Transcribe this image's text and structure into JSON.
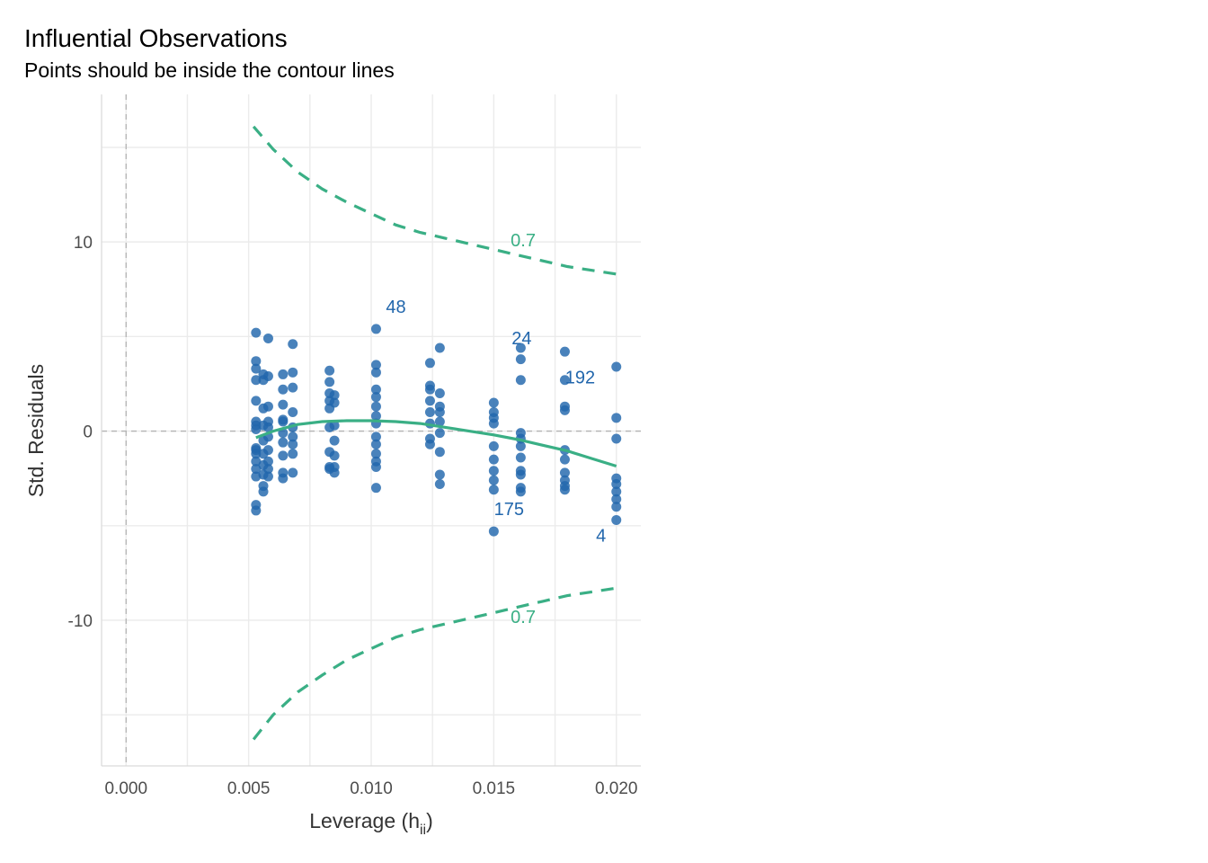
{
  "chart_data": {
    "type": "scatter",
    "title": "Influential Observations",
    "subtitle": "Points should be inside the contour lines",
    "xlabel": "Leverage (h",
    "xlabel_sub": "ii",
    "xlabel_close": ")",
    "ylabel": "Std. Residuals",
    "xlim": [
      -0.001,
      0.021
    ],
    "ylim": [
      -17.7,
      17.8
    ],
    "x_ticks": [
      0.0,
      0.005,
      0.01,
      0.015,
      0.02
    ],
    "x_tick_labels": [
      "0.000",
      "0.005",
      "0.010",
      "0.015",
      "0.020"
    ],
    "y_ticks": [
      -10,
      0,
      10
    ],
    "y_tick_labels": [
      "-10",
      "0",
      "10"
    ],
    "reference_lines": {
      "x": 0,
      "y": 0
    },
    "colors": {
      "points": "#2166ac",
      "smooth": "#3aaf85",
      "contour": "#3aaf85",
      "grid": "#ebebeb",
      "reference": "#b3b3b3"
    },
    "points": [
      {
        "x": 0.0053,
        "y": 5.2
      },
      {
        "x": 0.0053,
        "y": 3.7
      },
      {
        "x": 0.0053,
        "y": 3.3
      },
      {
        "x": 0.0053,
        "y": 2.7
      },
      {
        "x": 0.0053,
        "y": 1.6
      },
      {
        "x": 0.0053,
        "y": 0.5
      },
      {
        "x": 0.0053,
        "y": 0.3
      },
      {
        "x": 0.0053,
        "y": 0.1
      },
      {
        "x": 0.0053,
        "y": -0.9
      },
      {
        "x": 0.0053,
        "y": -1.0
      },
      {
        "x": 0.0053,
        "y": -1.2
      },
      {
        "x": 0.0053,
        "y": -1.6
      },
      {
        "x": 0.0053,
        "y": -2.0
      },
      {
        "x": 0.0053,
        "y": -2.4
      },
      {
        "x": 0.0053,
        "y": -3.9
      },
      {
        "x": 0.0053,
        "y": -4.2
      },
      {
        "x": 0.0056,
        "y": 3.0
      },
      {
        "x": 0.0056,
        "y": 2.7
      },
      {
        "x": 0.0056,
        "y": 1.2
      },
      {
        "x": 0.0056,
        "y": 0.3
      },
      {
        "x": 0.0056,
        "y": -0.5
      },
      {
        "x": 0.0056,
        "y": -1.2
      },
      {
        "x": 0.0056,
        "y": -1.8
      },
      {
        "x": 0.0056,
        "y": -2.3
      },
      {
        "x": 0.0056,
        "y": -2.9
      },
      {
        "x": 0.0056,
        "y": -3.2
      },
      {
        "x": 0.0058,
        "y": 4.9
      },
      {
        "x": 0.0058,
        "y": 2.9
      },
      {
        "x": 0.0058,
        "y": 1.3
      },
      {
        "x": 0.0058,
        "y": 0.5
      },
      {
        "x": 0.0058,
        "y": 0.2
      },
      {
        "x": 0.0058,
        "y": -0.3
      },
      {
        "x": 0.0058,
        "y": -1.0
      },
      {
        "x": 0.0058,
        "y": -1.6
      },
      {
        "x": 0.0058,
        "y": -2.0
      },
      {
        "x": 0.0058,
        "y": -2.4
      },
      {
        "x": 0.0064,
        "y": 3.0
      },
      {
        "x": 0.0064,
        "y": 2.2
      },
      {
        "x": 0.0064,
        "y": 1.4
      },
      {
        "x": 0.0064,
        "y": 0.6
      },
      {
        "x": 0.0064,
        "y": 0.5
      },
      {
        "x": 0.0064,
        "y": -0.1
      },
      {
        "x": 0.0064,
        "y": -0.6
      },
      {
        "x": 0.0064,
        "y": -1.3
      },
      {
        "x": 0.0064,
        "y": -2.2
      },
      {
        "x": 0.0064,
        "y": -2.5
      },
      {
        "x": 0.0068,
        "y": 4.6
      },
      {
        "x": 0.0068,
        "y": 3.1
      },
      {
        "x": 0.0068,
        "y": 2.3
      },
      {
        "x": 0.0068,
        "y": 1.0
      },
      {
        "x": 0.0068,
        "y": 0.2
      },
      {
        "x": 0.0068,
        "y": -0.3
      },
      {
        "x": 0.0068,
        "y": -0.7
      },
      {
        "x": 0.0068,
        "y": -1.2
      },
      {
        "x": 0.0068,
        "y": -2.2
      },
      {
        "x": 0.0083,
        "y": 3.2
      },
      {
        "x": 0.0083,
        "y": 2.6
      },
      {
        "x": 0.0083,
        "y": 2.0
      },
      {
        "x": 0.0083,
        "y": 1.6
      },
      {
        "x": 0.0083,
        "y": 1.2
      },
      {
        "x": 0.0083,
        "y": 0.2
      },
      {
        "x": 0.0083,
        "y": -1.1
      },
      {
        "x": 0.0083,
        "y": -1.9
      },
      {
        "x": 0.0083,
        "y": -2.0
      },
      {
        "x": 0.0085,
        "y": 1.9
      },
      {
        "x": 0.0085,
        "y": 1.5
      },
      {
        "x": 0.0085,
        "y": 0.3
      },
      {
        "x": 0.0085,
        "y": -0.5
      },
      {
        "x": 0.0085,
        "y": -1.3
      },
      {
        "x": 0.0085,
        "y": -1.9
      },
      {
        "x": 0.0085,
        "y": -2.2
      },
      {
        "x": 0.0102,
        "y": 5.4
      },
      {
        "x": 0.0102,
        "y": 3.5
      },
      {
        "x": 0.0102,
        "y": 3.1
      },
      {
        "x": 0.0102,
        "y": 2.2
      },
      {
        "x": 0.0102,
        "y": 1.8
      },
      {
        "x": 0.0102,
        "y": 1.3
      },
      {
        "x": 0.0102,
        "y": 0.8
      },
      {
        "x": 0.0102,
        "y": 0.4
      },
      {
        "x": 0.0102,
        "y": -0.3
      },
      {
        "x": 0.0102,
        "y": -0.7
      },
      {
        "x": 0.0102,
        "y": -1.2
      },
      {
        "x": 0.0102,
        "y": -1.6
      },
      {
        "x": 0.0102,
        "y": -1.9
      },
      {
        "x": 0.0102,
        "y": -3.0
      },
      {
        "x": 0.0124,
        "y": 3.6
      },
      {
        "x": 0.0124,
        "y": 2.4
      },
      {
        "x": 0.0124,
        "y": 2.2
      },
      {
        "x": 0.0124,
        "y": 1.6
      },
      {
        "x": 0.0124,
        "y": 1.0
      },
      {
        "x": 0.0124,
        "y": 0.4
      },
      {
        "x": 0.0124,
        "y": -0.4
      },
      {
        "x": 0.0124,
        "y": -0.7
      },
      {
        "x": 0.0128,
        "y": 4.4
      },
      {
        "x": 0.0128,
        "y": 2.0
      },
      {
        "x": 0.0128,
        "y": 1.3
      },
      {
        "x": 0.0128,
        "y": 1.0
      },
      {
        "x": 0.0128,
        "y": 0.5
      },
      {
        "x": 0.0128,
        "y": -0.1
      },
      {
        "x": 0.0128,
        "y": -1.1
      },
      {
        "x": 0.0128,
        "y": -2.3
      },
      {
        "x": 0.0128,
        "y": -2.8
      },
      {
        "x": 0.015,
        "y": 1.5
      },
      {
        "x": 0.015,
        "y": 1.0
      },
      {
        "x": 0.015,
        "y": 0.7
      },
      {
        "x": 0.015,
        "y": 0.4
      },
      {
        "x": 0.015,
        "y": -0.8
      },
      {
        "x": 0.015,
        "y": -1.5
      },
      {
        "x": 0.015,
        "y": -2.1
      },
      {
        "x": 0.015,
        "y": -2.6
      },
      {
        "x": 0.015,
        "y": -3.1
      },
      {
        "x": 0.015,
        "y": -5.3
      },
      {
        "x": 0.0161,
        "y": 4.4
      },
      {
        "x": 0.0161,
        "y": 3.8
      },
      {
        "x": 0.0161,
        "y": 2.7
      },
      {
        "x": 0.0161,
        "y": -0.1
      },
      {
        "x": 0.0161,
        "y": -0.4
      },
      {
        "x": 0.0161,
        "y": -0.8
      },
      {
        "x": 0.0161,
        "y": -1.4
      },
      {
        "x": 0.0161,
        "y": -2.1
      },
      {
        "x": 0.0161,
        "y": -2.3
      },
      {
        "x": 0.0161,
        "y": -3.0
      },
      {
        "x": 0.0161,
        "y": -3.2
      },
      {
        "x": 0.0179,
        "y": 4.2
      },
      {
        "x": 0.0179,
        "y": 2.7
      },
      {
        "x": 0.0179,
        "y": 1.3
      },
      {
        "x": 0.0179,
        "y": 1.1
      },
      {
        "x": 0.0179,
        "y": -1.0
      },
      {
        "x": 0.0179,
        "y": -1.5
      },
      {
        "x": 0.0179,
        "y": -2.2
      },
      {
        "x": 0.0179,
        "y": -2.6
      },
      {
        "x": 0.0179,
        "y": -2.9
      },
      {
        "x": 0.0179,
        "y": -3.1
      },
      {
        "x": 0.02,
        "y": 3.4
      },
      {
        "x": 0.02,
        "y": 0.7
      },
      {
        "x": 0.02,
        "y": -0.4
      },
      {
        "x": 0.02,
        "y": -2.5
      },
      {
        "x": 0.02,
        "y": -2.8
      },
      {
        "x": 0.02,
        "y": -3.2
      },
      {
        "x": 0.02,
        "y": -3.6
      },
      {
        "x": 0.02,
        "y": -4.0
      },
      {
        "x": 0.02,
        "y": -4.7
      }
    ],
    "point_labels": [
      {
        "text": "48",
        "x": 0.0102,
        "y": 5.4
      },
      {
        "text": "24",
        "x": 0.0161,
        "y": 4.4
      },
      {
        "text": "192",
        "x": 0.0179,
        "y": 2.7
      },
      {
        "text": "175",
        "x": 0.015,
        "y": -5.3
      },
      {
        "text": "4",
        "x": 0.02,
        "y": -4.7
      }
    ],
    "smooth_line": {
      "x": [
        0.0053,
        0.006,
        0.007,
        0.008,
        0.009,
        0.01,
        0.011,
        0.012,
        0.013,
        0.014,
        0.015,
        0.016,
        0.017,
        0.018,
        0.019,
        0.02
      ],
      "y": [
        -0.35,
        0.0,
        0.35,
        0.5,
        0.55,
        0.55,
        0.5,
        0.4,
        0.2,
        0.0,
        -0.2,
        -0.45,
        -0.75,
        -1.05,
        -1.45,
        -1.85
      ]
    },
    "contours": {
      "level_label": "0.7",
      "x": [
        0.0052,
        0.006,
        0.007,
        0.008,
        0.009,
        0.01,
        0.011,
        0.012,
        0.013,
        0.014,
        0.015,
        0.016,
        0.017,
        0.018,
        0.019,
        0.02
      ],
      "upper": [
        16.1,
        14.9,
        13.7,
        12.8,
        12.1,
        11.5,
        10.9,
        10.5,
        10.2,
        9.9,
        9.6,
        9.3,
        9.0,
        8.7,
        8.5,
        8.3
      ],
      "lower": [
        -16.3,
        -15.0,
        -13.8,
        -12.9,
        -12.1,
        -11.5,
        -10.9,
        -10.5,
        -10.2,
        -9.9,
        -9.6,
        -9.3,
        -9.0,
        -8.7,
        -8.5,
        -8.3
      ],
      "label_positions": [
        {
          "x": 0.0162,
          "y": 10.1
        },
        {
          "x": 0.0162,
          "y": -9.8
        }
      ]
    }
  }
}
